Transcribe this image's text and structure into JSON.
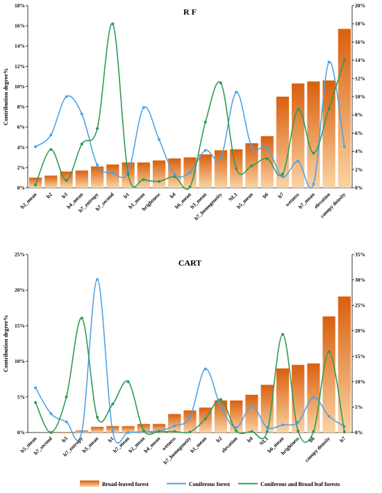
{
  "legend": {
    "broad_leaved": "Broad-leaved forest",
    "coniferous": "Coniferous forest",
    "mixed": "Coniferous and Broad leaf forests"
  },
  "colors": {
    "bar_top": "#d9600d",
    "bar_bottom": "#fbd3a4",
    "coniferous": "#4ea3e6",
    "mixed": "#2e9a54"
  },
  "chart_data": [
    {
      "type": "bar",
      "title": "R F",
      "ylabel": "Contribution degree%",
      "ylim_left": [
        0,
        18
      ],
      "ylim_right": [
        0,
        20
      ],
      "left_ticks": [
        "0%",
        "2%",
        "4%",
        "6%",
        "8%",
        "10%",
        "12%",
        "14%",
        "16%",
        "18%"
      ],
      "right_ticks": [
        "0%",
        "2%",
        "4%",
        "6%",
        "8%",
        "10%",
        "12%",
        "14%",
        "16%",
        "18%",
        "20%"
      ],
      "categories": [
        "b2_mean",
        "b2",
        "b3",
        "b4_mean",
        "b7_entropy",
        "b7_second",
        "b1",
        "b1_mean",
        "brightness",
        "b4",
        "b6_mean",
        "b3_mean",
        "b7_homogeneity",
        "NL1",
        "b5_mean",
        "b6",
        "b7",
        "wetness",
        "b7_mean",
        "elevation",
        "canopy density"
      ],
      "series": [
        {
          "name": "Broad-leaved forest",
          "axis": "left",
          "kind": "bar",
          "values": [
            1.0,
            1.2,
            1.6,
            1.7,
            2.1,
            2.3,
            2.5,
            2.5,
            2.7,
            2.9,
            3.0,
            3.3,
            3.7,
            3.8,
            4.4,
            5.1,
            9.0,
            10.3,
            10.5,
            10.6,
            15.7
          ]
        },
        {
          "name": "Coniferous forest",
          "axis": "right",
          "kind": "line",
          "values": [
            4.5,
            5.8,
            10.0,
            8.1,
            2.5,
            1.6,
            1.7,
            8.8,
            5.3,
            1.5,
            1.7,
            4.1,
            3.3,
            10.5,
            4.5,
            4.4,
            1.2,
            2.9,
            0.4,
            13.8,
            4.5
          ]
        },
        {
          "name": "Coniferous and Broad leaf forests",
          "axis": "right",
          "kind": "line",
          "values": [
            0.3,
            4.2,
            0.8,
            4.8,
            6.5,
            18.0,
            1.5,
            0.9,
            0.7,
            1.2,
            0.1,
            7.2,
            11.5,
            2.1,
            2.4,
            3.2,
            1.5,
            8.6,
            3.8,
            8.7,
            14.0
          ]
        }
      ]
    },
    {
      "type": "bar",
      "title": "CART",
      "ylabel": "Contribution degree%",
      "ylim_left": [
        0,
        25
      ],
      "ylim_right": [
        0,
        35
      ],
      "left_ticks": [
        "0%",
        "5%",
        "10%",
        "15%",
        "20%",
        "25%"
      ],
      "right_ticks": [
        "0%",
        "5%",
        "10%",
        "15%",
        "20%",
        "25%",
        "30%",
        "35%"
      ],
      "categories": [
        "b5_mean",
        "b7_second",
        "b3",
        "b7_entropy",
        "b3_mean",
        "b1",
        "b7_mean",
        "b2_mean",
        "b4_mean",
        "wetness",
        "b7_homogeneity",
        "b1_mean",
        "b2",
        "elevation",
        "b4",
        "NL1",
        "b6_mean",
        "brightness",
        "b6",
        "canopy density",
        "b7"
      ],
      "series": [
        {
          "name": "Broad-leaved forest",
          "axis": "left",
          "kind": "bar",
          "values": [
            0.0,
            0.0,
            0.1,
            0.3,
            0.8,
            0.9,
            0.9,
            1.2,
            1.2,
            2.6,
            3.1,
            3.5,
            4.5,
            4.5,
            5.3,
            6.7,
            9.0,
            9.5,
            9.7,
            16.3,
            19.1
          ]
        },
        {
          "name": "Coniferous forest",
          "axis": "right",
          "kind": "line",
          "values": [
            8.8,
            3.7,
            2.1,
            0.2,
            30.1,
            0.2,
            0.0,
            0.2,
            0.3,
            1.3,
            3.0,
            12.5,
            5.0,
            1.0,
            5.2,
            1.0,
            1.5,
            2.0,
            6.9,
            3.2,
            1.2
          ]
        },
        {
          "name": "Coniferous and Broad leaf forests",
          "axis": "right",
          "kind": "line",
          "values": [
            5.9,
            0.0,
            7.0,
            22.5,
            3.0,
            5.6,
            10.0,
            0.4,
            0.2,
            0.2,
            0.1,
            2.7,
            6.5,
            0.3,
            0.2,
            0.2,
            19.3,
            0.3,
            0.2,
            15.9,
            0.1
          ]
        }
      ]
    }
  ]
}
